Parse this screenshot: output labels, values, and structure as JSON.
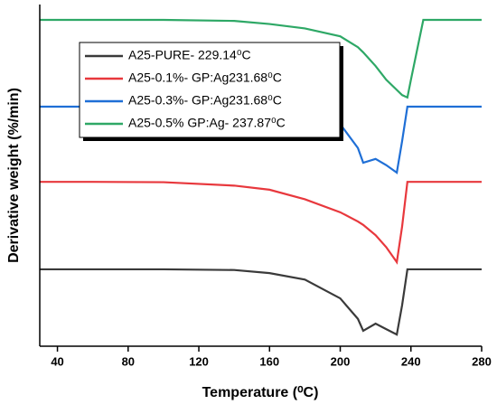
{
  "chart_data": {
    "type": "line",
    "xlabel": "Temperature (⁰C)",
    "ylabel": "Derivative weight (%/min)",
    "x": [
      30,
      60,
      100,
      140,
      160,
      180,
      200,
      210,
      213,
      220,
      226,
      232,
      235,
      238,
      240,
      247,
      260,
      280
    ],
    "series": [
      {
        "name": "A25-PURE- 229.14⁰C",
        "color": "#3a3a3a",
        "values": [
          22.5,
          22.5,
          22.5,
          22.3,
          21.4,
          19.5,
          14,
          8,
          4.5,
          6.6,
          5,
          3.4,
          12,
          22.5,
          22.5,
          22.5,
          22.5,
          22.5
        ]
      },
      {
        "name": "A25-0.1%- GP:Ag231.68⁰C",
        "color": "#e8383d",
        "values": [
          48.1,
          48.1,
          48,
          47,
          45.8,
          43,
          39.2,
          36.5,
          35.5,
          32.5,
          29,
          24.6,
          35,
          48.1,
          48.1,
          48.1,
          48.1,
          48.1
        ]
      },
      {
        "name": "A25-0.3%- GP:Ag231.68⁰C",
        "color": "#1f6fd6",
        "values": [
          70.1,
          70.1,
          70.1,
          70.1,
          70.1,
          69,
          65,
          58,
          53.7,
          54.8,
          53,
          50.8,
          60,
          70.1,
          70.1,
          70.1,
          70.1,
          70.1
        ]
      },
      {
        "name": "A25-0.5% GP:Ag- 237.87⁰C",
        "color": "#2ea866",
        "values": [
          95.5,
          95.5,
          95.5,
          95.2,
          94.3,
          93,
          90.7,
          87.5,
          86,
          82,
          78,
          75,
          73.5,
          72.8,
          78,
          95.5,
          95.5,
          95.5
        ]
      }
    ],
    "xlim": [
      30,
      280
    ],
    "xticks": [
      40,
      80,
      120,
      160,
      200,
      240,
      280
    ],
    "ylim": [
      0,
      100
    ]
  }
}
